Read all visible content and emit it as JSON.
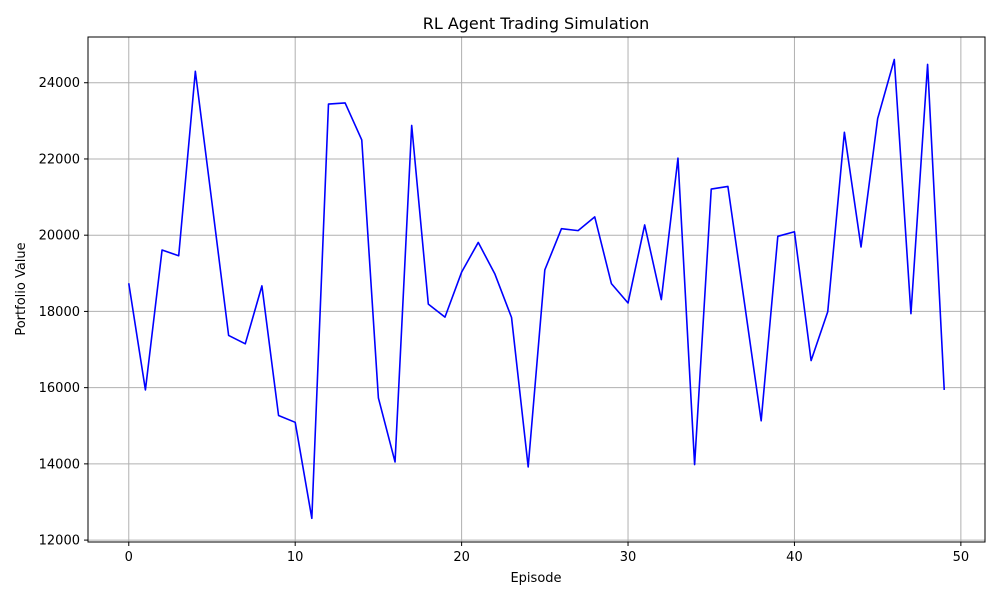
{
  "chart_data": {
    "type": "line",
    "title": "RL Agent Trading Simulation",
    "xlabel": "Episode",
    "ylabel": "Portfolio Value",
    "xlim": [
      -2.45,
      51.45
    ],
    "ylim": [
      11950,
      25200
    ],
    "x_ticks": [
      0,
      10,
      20,
      30,
      40,
      50
    ],
    "y_ticks": [
      12000,
      14000,
      16000,
      18000,
      20000,
      22000,
      24000
    ],
    "grid": true,
    "line_color": "#0000ff",
    "series": [
      {
        "x": [
          0,
          1,
          2,
          3,
          4,
          5,
          6,
          7,
          8,
          9,
          10,
          11,
          12,
          13,
          14,
          15,
          16,
          17,
          18,
          19,
          20,
          21,
          22,
          23,
          24,
          25,
          26,
          27,
          28,
          29,
          30,
          31,
          32,
          33,
          34,
          35,
          36,
          37,
          38,
          39,
          40,
          41,
          42,
          43,
          44,
          45,
          46,
          47,
          48,
          49
        ],
        "values": [
          18740,
          15940,
          19610,
          19460,
          24300,
          20850,
          17370,
          17150,
          18670,
          15270,
          15090,
          12570,
          23440,
          23470,
          22500,
          15730,
          14050,
          22880,
          18190,
          17850,
          19030,
          19810,
          18980,
          17840,
          13920,
          19090,
          20170,
          20120,
          20480,
          18730,
          18220,
          20270,
          18310,
          22020,
          13980,
          21210,
          21280,
          18210,
          15130,
          19970,
          20090,
          16710,
          17990,
          22700,
          19690,
          23060,
          24610,
          17940,
          24480,
          15940
        ]
      }
    ]
  }
}
